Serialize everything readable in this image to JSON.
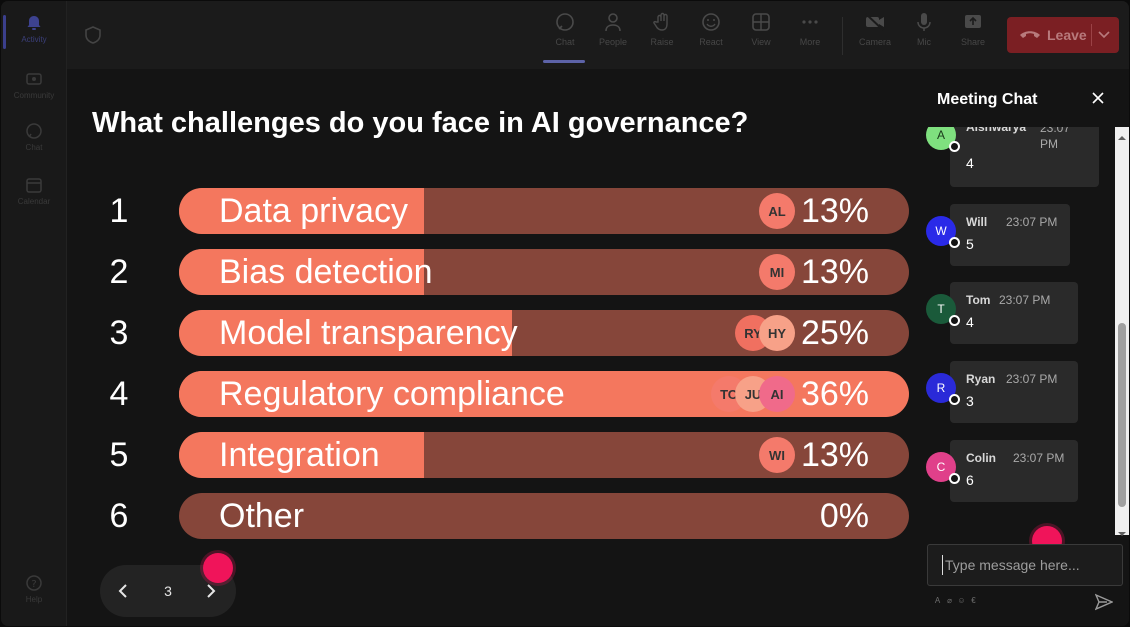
{
  "rail": {
    "items": [
      {
        "label": "Activity",
        "icon": "bell-icon"
      },
      {
        "label": "Community",
        "icon": "community-icon"
      },
      {
        "label": "Chat",
        "icon": "chat-icon"
      },
      {
        "label": "Calendar",
        "icon": "calendar-icon"
      }
    ],
    "help": {
      "label": "Help",
      "icon": "help-icon"
    }
  },
  "toolbar": {
    "items": [
      {
        "label": "Chat",
        "icon": "chat-icon",
        "active": true
      },
      {
        "label": "People",
        "icon": "people-icon"
      },
      {
        "label": "Raise",
        "icon": "hand-icon"
      },
      {
        "label": "React",
        "icon": "smile-icon"
      },
      {
        "label": "View",
        "icon": "grid-icon"
      },
      {
        "label": "More",
        "icon": "more-icon"
      },
      {
        "label": "Camera",
        "icon": "camera-icon"
      },
      {
        "label": "Mic",
        "icon": "mic-icon"
      },
      {
        "label": "Share",
        "icon": "share-icon"
      }
    ],
    "leave_label": "Leave"
  },
  "poll": {
    "question": "What challenges do you face in AI governance?",
    "options": [
      {
        "num": "1",
        "label": "Data privacy",
        "pct_text": "13%",
        "fraction": 0.13,
        "bright": false,
        "avatars": [
          {
            "initials": "AL",
            "color": "#f47a6b"
          }
        ]
      },
      {
        "num": "2",
        "label": "Bias detection",
        "pct_text": "13%",
        "fraction": 0.13,
        "bright": false,
        "avatars": [
          {
            "initials": "MI",
            "color": "#f47a6b"
          }
        ]
      },
      {
        "num": "3",
        "label": "Model transparency",
        "pct_text": "25%",
        "fraction": 0.25,
        "bright": false,
        "avatars": [
          {
            "initials": "RY",
            "color": "#f07060"
          },
          {
            "initials": "HY",
            "color": "#f7a188"
          }
        ]
      },
      {
        "num": "4",
        "label": "Regulatory compliance",
        "pct_text": "36%",
        "fraction": 0.36,
        "bright": true,
        "avatars": [
          {
            "initials": "TO",
            "color": "#f47a6b"
          },
          {
            "initials": "JU",
            "color": "#f7a188"
          },
          {
            "initials": "AI",
            "color": "#f06a8a"
          }
        ]
      },
      {
        "num": "5",
        "label": "Integration",
        "pct_text": "13%",
        "fraction": 0.13,
        "bright": false,
        "avatars": [
          {
            "initials": "WI",
            "color": "#f47a6b"
          }
        ]
      },
      {
        "num": "6",
        "label": "Other",
        "pct_text": "0%",
        "fraction": 0.0,
        "bright": false,
        "avatars": []
      }
    ],
    "page": "3"
  },
  "chat": {
    "title": "Meeting Chat",
    "messages": [
      {
        "initial": "A",
        "avatar_color": "#7fe07f",
        "author": "Aishwarya",
        "time": "23:07 PM",
        "text": "4"
      },
      {
        "initial": "W",
        "avatar_color": "#2a2ae8",
        "author": "Will",
        "time": "23:07 PM",
        "text": "5"
      },
      {
        "initial": "T",
        "avatar_color": "#1a5a3a",
        "author": "Tom",
        "time": "23:07 PM",
        "text": "4"
      },
      {
        "initial": "R",
        "avatar_color": "#2a2ad8",
        "author": "Ryan",
        "time": "23:07 PM",
        "text": "3"
      },
      {
        "initial": "C",
        "avatar_color": "#e0408a",
        "author": "Colin",
        "time": "23:07 PM",
        "text": "6"
      }
    ],
    "input_placeholder": "Type message here..."
  },
  "colors": {
    "bar_track": "#86463a",
    "bar_fill": "#f4775e",
    "bar_bright": "#f4775e",
    "pointer": "#f0145a"
  }
}
